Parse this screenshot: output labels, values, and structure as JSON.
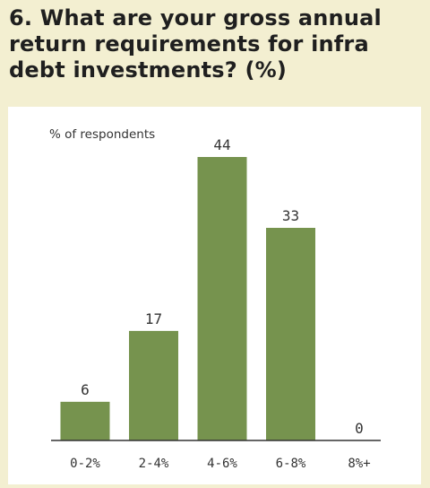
{
  "title": "6. What are your gross annual return requirements for infra debt investments? (%)",
  "chart_data": {
    "type": "bar",
    "title": "6. What are your gross annual return requirements for infra debt investments? (%)",
    "ylabel": "% of respondents",
    "xlabel": "",
    "categories": [
      "0-2%",
      "2-4%",
      "4-6%",
      "6-8%",
      "8%+"
    ],
    "values": [
      6,
      17,
      44,
      33,
      0
    ],
    "ylim": [
      0,
      44
    ],
    "grid": false,
    "bar_color": "#76934e"
  }
}
